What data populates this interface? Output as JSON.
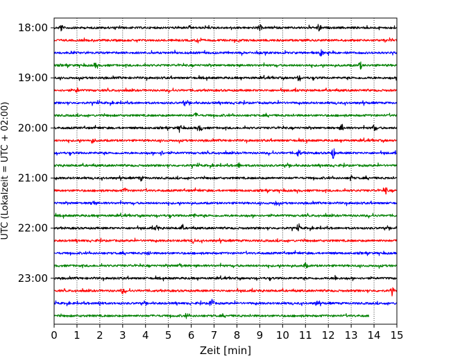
{
  "chart_data": {
    "type": "line",
    "chart_kind": "helicorder",
    "title": "",
    "xlabel": "Zeit  [min]",
    "ylabel": "UTC (Lokalzeit = UTC + 02:00)",
    "xlim": [
      0,
      15
    ],
    "x_ticks": [
      "0",
      "1",
      "2",
      "3",
      "4",
      "5",
      "6",
      "7",
      "8",
      "9",
      "10",
      "11",
      "12",
      "13",
      "14",
      "15"
    ],
    "y_tick_labels": [
      "18:00",
      "19:00",
      "20:00",
      "21:00",
      "22:00",
      "23:00"
    ],
    "rows_per_hour": 4,
    "minutes_per_row": 15,
    "grid_x": true,
    "trace_colors": [
      "#000000",
      "#ff0000",
      "#0000ff",
      "#008000"
    ],
    "traces": [
      {
        "start": "18:00",
        "end_minute": 15,
        "color": "#000000",
        "events": [
          {
            "minute": 0.3,
            "amplitude": 0.7
          },
          {
            "minute": 9.0,
            "amplitude": 0.6
          },
          {
            "minute": 11.6,
            "amplitude": 0.8
          }
        ]
      },
      {
        "start": "18:15",
        "end_minute": 15,
        "color": "#ff0000",
        "events": [
          {
            "minute": 6.3,
            "amplitude": 0.5
          }
        ]
      },
      {
        "start": "18:30",
        "end_minute": 15,
        "color": "#0000ff",
        "events": [
          {
            "minute": 11.7,
            "amplitude": 0.6
          }
        ]
      },
      {
        "start": "18:45",
        "end_minute": 15,
        "color": "#008000",
        "events": [
          {
            "minute": 1.8,
            "amplitude": 0.4
          },
          {
            "minute": 13.4,
            "amplitude": 0.7
          }
        ]
      },
      {
        "start": "19:00",
        "end_minute": 15,
        "color": "#000000",
        "events": [
          {
            "minute": 10.7,
            "amplitude": 0.5
          }
        ]
      },
      {
        "start": "19:15",
        "end_minute": 15,
        "color": "#ff0000",
        "events": [
          {
            "minute": 1.0,
            "amplitude": 0.4
          }
        ]
      },
      {
        "start": "19:30",
        "end_minute": 15,
        "color": "#0000ff",
        "events": [
          {
            "minute": 5.7,
            "amplitude": 0.4
          }
        ]
      },
      {
        "start": "19:45",
        "end_minute": 15,
        "color": "#008000",
        "events": [
          {
            "minute": 6.2,
            "amplitude": 0.4
          }
        ]
      },
      {
        "start": "20:00",
        "end_minute": 15,
        "color": "#000000",
        "events": [
          {
            "minute": 5.5,
            "amplitude": 0.6
          },
          {
            "minute": 6.4,
            "amplitude": 0.6
          },
          {
            "minute": 12.6,
            "amplitude": 0.7
          },
          {
            "minute": 14.0,
            "amplitude": 0.6
          }
        ]
      },
      {
        "start": "20:15",
        "end_minute": 15,
        "color": "#ff0000",
        "events": [
          {
            "minute": 1.7,
            "amplitude": 0.5
          }
        ]
      },
      {
        "start": "20:30",
        "end_minute": 15,
        "color": "#0000ff",
        "events": [
          {
            "minute": 4.7,
            "amplitude": 0.4
          },
          {
            "minute": 10.7,
            "amplitude": 0.7
          },
          {
            "minute": 12.2,
            "amplitude": 1.2
          }
        ]
      },
      {
        "start": "20:45",
        "end_minute": 15,
        "color": "#008000",
        "events": [
          {
            "minute": 8.1,
            "amplitude": 0.5
          }
        ]
      },
      {
        "start": "21:00",
        "end_minute": 15,
        "color": "#000000",
        "events": [
          {
            "minute": 3.8,
            "amplitude": 0.5
          },
          {
            "minute": 13.0,
            "amplitude": 0.5
          }
        ]
      },
      {
        "start": "21:15",
        "end_minute": 15,
        "color": "#ff0000",
        "events": [
          {
            "minute": 3.1,
            "amplitude": 0.5
          },
          {
            "minute": 14.5,
            "amplitude": 0.7
          }
        ]
      },
      {
        "start": "21:30",
        "end_minute": 15,
        "color": "#0000ff",
        "events": [
          {
            "minute": 1.7,
            "amplitude": 0.5
          },
          {
            "minute": 9.7,
            "amplitude": 0.4
          }
        ]
      },
      {
        "start": "21:45",
        "end_minute": 15,
        "color": "#008000",
        "events": [
          {
            "minute": 6.1,
            "amplitude": 0.4
          }
        ]
      },
      {
        "start": "22:00",
        "end_minute": 15,
        "color": "#000000",
        "events": [
          {
            "minute": 4.5,
            "amplitude": 0.6
          },
          {
            "minute": 5.6,
            "amplitude": 0.5
          },
          {
            "minute": 10.7,
            "amplitude": 0.5
          }
        ]
      },
      {
        "start": "22:15",
        "end_minute": 15,
        "color": "#ff0000",
        "events": [
          {
            "minute": 6.1,
            "amplitude": 0.4
          }
        ]
      },
      {
        "start": "22:30",
        "end_minute": 15,
        "color": "#0000ff",
        "events": [
          {
            "minute": 4.1,
            "amplitude": 0.4
          }
        ]
      },
      {
        "start": "22:45",
        "end_minute": 15,
        "color": "#008000",
        "events": [
          {
            "minute": 5.5,
            "amplitude": 0.4
          },
          {
            "minute": 11.0,
            "amplitude": 0.5
          }
        ]
      },
      {
        "start": "23:00",
        "end_minute": 15,
        "color": "#000000",
        "events": [
          {
            "minute": 12.3,
            "amplitude": 0.5
          }
        ]
      },
      {
        "start": "23:15",
        "end_minute": 15,
        "color": "#ff0000",
        "events": [
          {
            "minute": 3.0,
            "amplitude": 0.5
          },
          {
            "minute": 14.8,
            "amplitude": 0.6
          }
        ]
      },
      {
        "start": "23:30",
        "end_minute": 15,
        "color": "#0000ff",
        "events": [
          {
            "minute": 2.0,
            "amplitude": 0.5
          },
          {
            "minute": 6.9,
            "amplitude": 1.1
          },
          {
            "minute": 11.5,
            "amplitude": 0.5
          }
        ]
      },
      {
        "start": "23:45",
        "end_minute": 13.8,
        "color": "#008000",
        "events": [
          {
            "minute": 5.8,
            "amplitude": 0.4
          }
        ]
      }
    ]
  }
}
